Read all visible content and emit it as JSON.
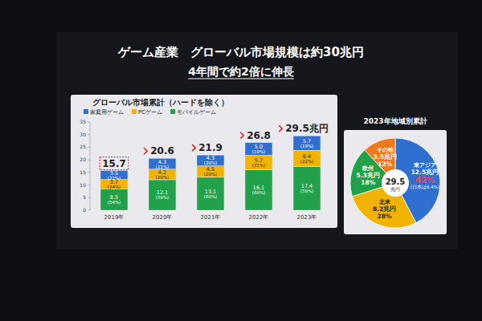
{
  "header": {
    "title": "ゲーム産業　グローバル市場規模は約30兆円",
    "subtitle": "4年間で約2倍に伸長"
  },
  "chart_data": [
    {
      "type": "bar",
      "stacked": true,
      "data_labels": true,
      "grid": false,
      "legend": "top-left",
      "title": "グローバル市場累計（ハードを除く）",
      "categories": [
        "2019年",
        "2020年",
        "2021年",
        "2022年",
        "2023年"
      ],
      "series": [
        {
          "name": "家庭用ゲーム",
          "color": "#2f6fd0",
          "values": [
            3.5,
            4.3,
            4.3,
            5.0,
            5.7
          ],
          "value_labels": [
            "3.5",
            "4.3",
            "4.3",
            "5.0",
            "5.7"
          ],
          "shares": [
            22,
            21,
            20,
            19,
            19
          ],
          "share_labels": [
            "(22%)",
            "(21%)",
            "(20%)",
            "(19%)",
            "(19%)"
          ]
        },
        {
          "name": "PCゲーム",
          "color": "#f2b300",
          "values": [
            3.7,
            4.2,
            4.5,
            5.7,
            6.4
          ],
          "value_labels": [
            "3.7",
            "4.2",
            "4.5",
            "5.7",
            "6.4"
          ],
          "shares": [
            24,
            20,
            20,
            21,
            22
          ],
          "share_labels": [
            "(24%)",
            "(20%)",
            "(20%)",
            "(21%)",
            "(22%)"
          ]
        },
        {
          "name": "モバイルゲーム",
          "color": "#22a04a",
          "values": [
            8.5,
            12.1,
            13.1,
            16.1,
            17.4
          ],
          "value_labels": [
            "8.5",
            "12.1",
            "13.1",
            "16.1",
            "17.4"
          ],
          "shares": [
            54,
            59,
            60,
            60,
            59
          ],
          "share_labels": [
            "(54%)",
            "(59%)",
            "(60%)",
            "(60%)",
            "(59%)"
          ]
        }
      ],
      "totals": [
        15.7,
        20.6,
        21.9,
        26.8,
        29.5
      ],
      "total_labels": [
        "15.7",
        "20.6",
        "21.9",
        "26.8",
        "29.5兆円"
      ],
      "ylim": [
        0,
        35
      ],
      "yticks": [
        0,
        5,
        10,
        15,
        20,
        25,
        30,
        35
      ]
    },
    {
      "type": "pie",
      "data_labels": true,
      "title": "2023年地域別累計",
      "categories": [
        "東アジア",
        "北米",
        "欧州",
        "その他"
      ],
      "values": [
        12.5,
        8.2,
        5.3,
        3.5
      ],
      "value_labels": [
        "12.5兆円",
        "8.2兆円",
        "5.3兆円",
        "3.5兆円"
      ],
      "shares": [
        42,
        28,
        18,
        12
      ],
      "share_labels": [
        "42%",
        "28%",
        "18%",
        "12%"
      ],
      "colors": [
        "#2f6fd0",
        "#f2b300",
        "#22a04a",
        "#f07a1a"
      ],
      "annotation": "(日本は6.4%)",
      "center_value": 29.5,
      "center_label": "兆円"
    }
  ]
}
